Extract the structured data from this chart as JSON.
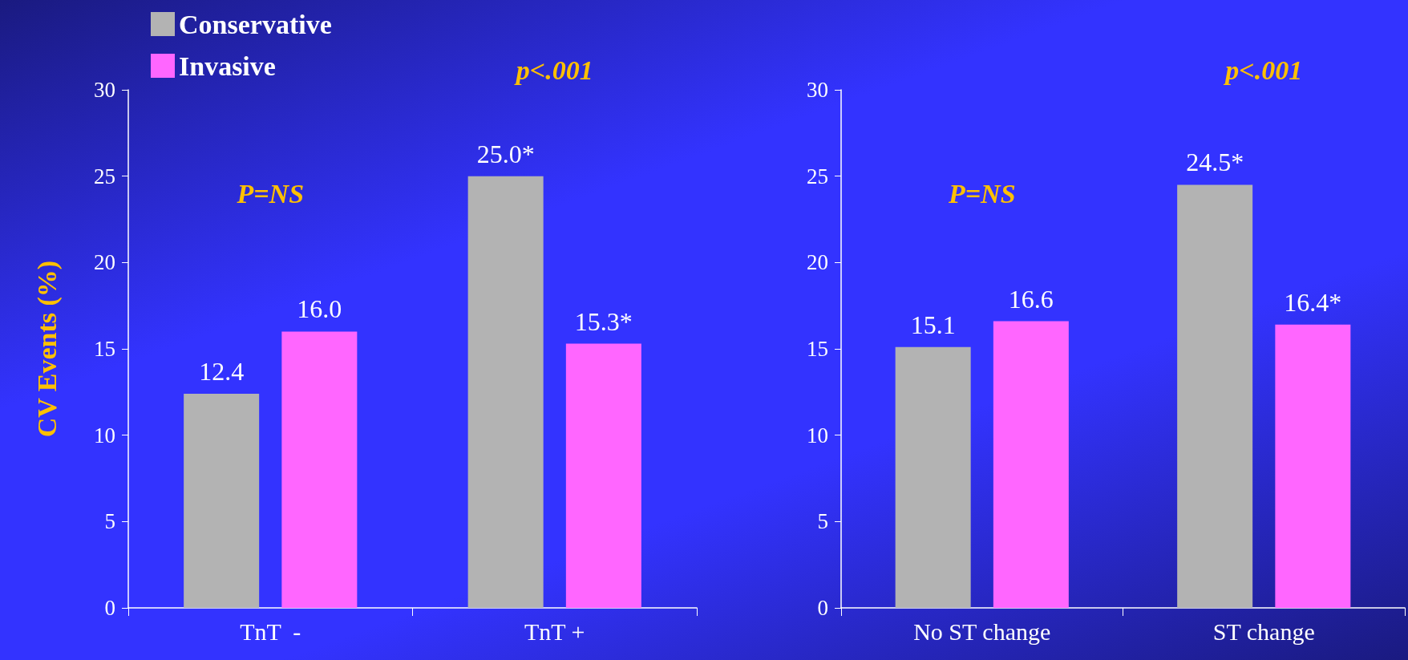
{
  "chart_data": [
    {
      "type": "bar",
      "ylabel": "CV Events (%)",
      "categories": [
        "TnT  -",
        "TnT +"
      ],
      "series": [
        {
          "name": "Conservative",
          "color": "#b3b3b3",
          "values": [
            12.4,
            25.0
          ],
          "value_labels": [
            "12.4",
            "25.0*"
          ]
        },
        {
          "name": "Invasive",
          "color": "#ff66ff",
          "values": [
            16.0,
            15.3
          ],
          "value_labels": [
            "16.0",
            "15.3*"
          ]
        }
      ],
      "ylim": [
        0,
        30
      ],
      "yticks": [
        0,
        5,
        10,
        15,
        20,
        25,
        30
      ],
      "grid": false,
      "legend": "top left",
      "annotations": [
        "P=NS",
        "p<.001"
      ]
    },
    {
      "type": "bar",
      "categories": [
        "No ST change",
        "ST change"
      ],
      "series": [
        {
          "color": "#b3b3b3",
          "values": [
            15.1,
            24.5
          ],
          "value_labels": [
            "15.1",
            "24.5*"
          ]
        },
        {
          "color": "#ff66ff",
          "values": [
            16.6,
            16.4
          ],
          "value_labels": [
            "16.6",
            "16.4*"
          ]
        }
      ],
      "ylim": [
        0,
        30
      ],
      "yticks": [
        0,
        5,
        10,
        15,
        20,
        25,
        30
      ],
      "grid": false,
      "annotations": [
        "P=NS",
        "p<.001"
      ]
    }
  ]
}
